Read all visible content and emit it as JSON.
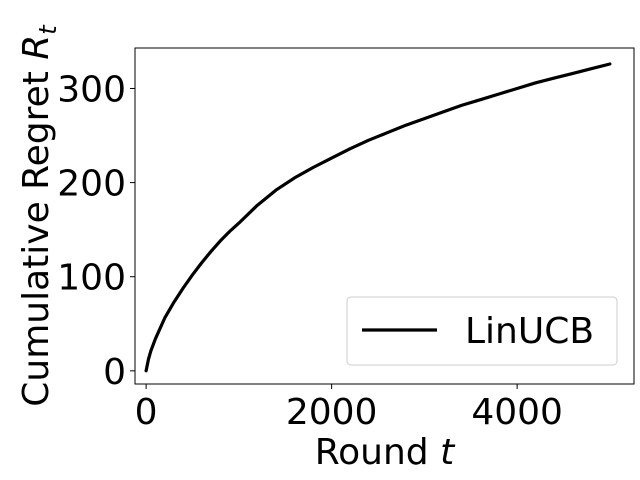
{
  "chart_data": {
    "type": "line",
    "xlabel": {
      "text": "Round ",
      "var": "t"
    },
    "ylabel": {
      "text": "Cumulative Regret ",
      "var": "R",
      "sub": "t"
    },
    "xlim": [
      -120,
      5260
    ],
    "ylim": [
      -14,
      343
    ],
    "xticks": [
      0,
      2000,
      4000
    ],
    "xtick_labels": [
      "0",
      "2000",
      "4000"
    ],
    "yticks": [
      0,
      100,
      200,
      300
    ],
    "ytick_labels": [
      "0",
      "100",
      "200",
      "300"
    ],
    "grid": false,
    "legend_position": "lower-right",
    "series": [
      {
        "name": "LinUCB",
        "color": "#000000",
        "x": [
          0,
          25,
          50,
          100,
          200,
          300,
          400,
          500,
          600,
          700,
          800,
          900,
          1000,
          1200,
          1400,
          1600,
          1800,
          2000,
          2200,
          2400,
          2600,
          2800,
          3000,
          3200,
          3400,
          3600,
          3800,
          4000,
          4200,
          4400,
          4600,
          4800,
          5000
        ],
        "values": [
          0,
          12,
          21,
          34,
          56,
          73,
          88,
          102,
          115,
          127,
          138,
          148,
          157,
          176,
          192,
          205,
          216,
          226,
          236,
          245,
          253,
          261,
          268,
          275,
          282,
          288,
          294,
          300,
          306,
          311,
          316,
          321,
          326
        ]
      }
    ]
  }
}
